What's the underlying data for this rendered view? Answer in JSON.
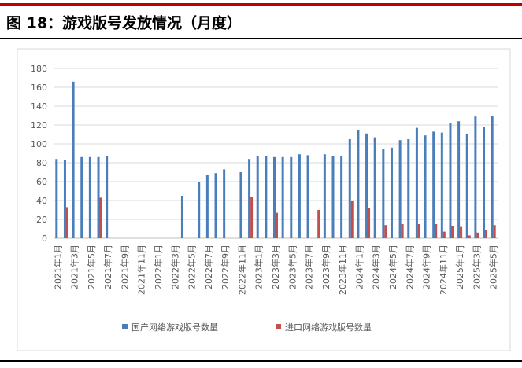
{
  "header": {
    "title": "图 18：游戏版号发放情况（月度）"
  },
  "chart_data": {
    "type": "bar",
    "categories": [
      "2021年1月",
      null,
      "2021年3月",
      null,
      "2021年5月",
      null,
      "2021年7月",
      null,
      "2021年9月",
      null,
      "2021年11月",
      null,
      "2022年1月",
      null,
      "2022年3月",
      null,
      "2022年5月",
      null,
      "2022年7月",
      null,
      "2022年9月",
      null,
      "2022年11月",
      null,
      "2023年1月",
      null,
      "2023年3月",
      null,
      "2023年5月",
      null,
      "2023年7月",
      null,
      "2023年9月",
      null,
      "2023年11月",
      null,
      "2024年1月",
      null,
      "2024年3月",
      null,
      "2024年5月",
      null,
      "2024年7月",
      null,
      "2024年9月",
      null,
      "2024年11月",
      null,
      "2025年1月",
      null,
      "2025年3月",
      null,
      "2025年5月"
    ],
    "series": [
      {
        "name": "国产网络游戏版号数量",
        "color": "#4a7ebb",
        "values": [
          84,
          83,
          166,
          86,
          86,
          86,
          87,
          null,
          null,
          null,
          null,
          null,
          null,
          null,
          null,
          45,
          null,
          60,
          67,
          69,
          73,
          null,
          70,
          84,
          87,
          87,
          86,
          86,
          86,
          89,
          88,
          null,
          89,
          87,
          87,
          105,
          115,
          111,
          107,
          95,
          96,
          104,
          105,
          117,
          109,
          113,
          112,
          122,
          124,
          110,
          129,
          118,
          130
        ]
      },
      {
        "name": "进口网络游戏版号数量",
        "color": "#c0504d",
        "values": [
          null,
          33,
          null,
          null,
          null,
          43,
          null,
          null,
          null,
          null,
          null,
          null,
          null,
          null,
          null,
          null,
          null,
          null,
          null,
          null,
          null,
          null,
          null,
          44,
          null,
          null,
          27,
          null,
          null,
          null,
          null,
          30,
          null,
          null,
          null,
          40,
          null,
          32,
          null,
          14,
          null,
          15,
          null,
          15,
          null,
          15,
          7,
          13,
          12,
          3,
          6,
          9,
          14
        ]
      }
    ],
    "ylim": [
      0,
      180
    ],
    "yticks": [
      0,
      20,
      40,
      60,
      80,
      100,
      120,
      140,
      160,
      180
    ],
    "grid": true,
    "legend": "bottom"
  }
}
